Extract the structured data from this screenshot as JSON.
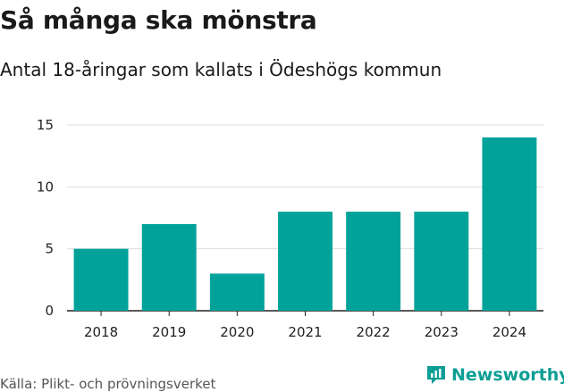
{
  "header": {
    "title": "Så många ska mönstra",
    "subtitle": "Antal 18-åringar som kallats i Ödeshögs kommun"
  },
  "footer": {
    "source": "Källa: Plikt- och prövningsverket",
    "brand": "Newsworthy"
  },
  "colors": {
    "bar": "#00a299",
    "brand": "#0b9e94",
    "grid": "#dddddd",
    "axis": "#222222"
  },
  "chart_data": {
    "type": "bar",
    "title": "Så många ska mönstra",
    "subtitle": "Antal 18-åringar som kallats i Ödeshögs kommun",
    "categories": [
      "2018",
      "2019",
      "2020",
      "2021",
      "2022",
      "2023",
      "2024"
    ],
    "values": [
      5,
      7,
      3,
      8,
      8,
      8,
      14
    ],
    "xlabel": "",
    "ylabel": "",
    "ylim": [
      0,
      15
    ],
    "yticks": [
      0,
      5,
      10,
      15
    ],
    "grid": true
  }
}
